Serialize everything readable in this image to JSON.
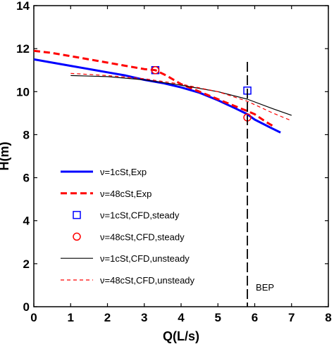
{
  "chart_data": {
    "type": "line",
    "xlabel": "Q(L/s)",
    "ylabel": "H(m)",
    "xlim": [
      0,
      8
    ],
    "ylim": [
      0,
      14
    ],
    "xticks": [
      "0",
      "1",
      "2",
      "3",
      "4",
      "5",
      "6",
      "7",
      "8"
    ],
    "yticks": [
      "0",
      "2",
      "4",
      "6",
      "8",
      "10",
      "12",
      "14"
    ],
    "grid": false,
    "legend_position": "bottom-left",
    "series": [
      {
        "name": "ν=1cSt,Exp",
        "style": "solid-thick",
        "color": "#0000ff",
        "points": [
          [
            0,
            11.5
          ],
          [
            0.5,
            11.35
          ],
          [
            1,
            11.2
          ],
          [
            1.5,
            11.05
          ],
          [
            2,
            10.9
          ],
          [
            2.5,
            10.75
          ],
          [
            3,
            10.55
          ],
          [
            3.5,
            10.4
          ],
          [
            4,
            10.2
          ],
          [
            4.5,
            9.95
          ],
          [
            5,
            9.6
          ],
          [
            5.5,
            9.2
          ],
          [
            5.8,
            8.95
          ],
          [
            6,
            8.7
          ],
          [
            6.4,
            8.35
          ],
          [
            6.7,
            8.1
          ]
        ]
      },
      {
        "name": "ν=48cSt,Exp",
        "style": "dashed-thick",
        "color": "#ff0000",
        "points": [
          [
            0,
            11.9
          ],
          [
            0.5,
            11.8
          ],
          [
            1,
            11.65
          ],
          [
            1.5,
            11.5
          ],
          [
            2,
            11.35
          ],
          [
            2.5,
            11.2
          ],
          [
            3,
            11.05
          ],
          [
            3.3,
            11.0
          ],
          [
            3.6,
            10.75
          ],
          [
            4,
            10.35
          ],
          [
            4.5,
            10.0
          ],
          [
            5,
            9.65
          ],
          [
            5.5,
            9.3
          ],
          [
            5.8,
            9.1
          ],
          [
            6,
            8.95
          ],
          [
            6.3,
            8.6
          ],
          [
            6.5,
            8.4
          ]
        ]
      },
      {
        "name": "ν=1cSt,CFD,steady",
        "style": "marker-square",
        "color": "#0000ff",
        "points": [
          [
            3.3,
            11.0
          ],
          [
            5.8,
            10.05
          ]
        ]
      },
      {
        "name": "ν=48cSt,CFD,steady",
        "style": "marker-circle",
        "color": "#ff0000",
        "points": [
          [
            3.3,
            11.0
          ],
          [
            5.8,
            8.8
          ]
        ]
      },
      {
        "name": "ν=1cSt,CFD,unsteady",
        "style": "solid-thin",
        "color": "#000000",
        "points": [
          [
            1,
            10.75
          ],
          [
            2,
            10.7
          ],
          [
            3,
            10.55
          ],
          [
            4,
            10.3
          ],
          [
            5,
            10.0
          ],
          [
            5.8,
            9.65
          ],
          [
            6.5,
            9.2
          ],
          [
            7,
            8.9
          ]
        ]
      },
      {
        "name": "ν=48cSt,CFD,unsteady",
        "style": "dashed-thin",
        "color": "#ff0000",
        "points": [
          [
            1,
            10.85
          ],
          [
            2,
            10.75
          ],
          [
            3,
            10.6
          ],
          [
            4,
            10.35
          ],
          [
            5,
            10.0
          ],
          [
            5.8,
            9.55
          ],
          [
            6.5,
            9.0
          ],
          [
            7,
            8.65
          ]
        ]
      }
    ],
    "annotations": [
      {
        "text": "BEP",
        "x": 5.8,
        "style": "vertical-dashed-line"
      }
    ]
  }
}
